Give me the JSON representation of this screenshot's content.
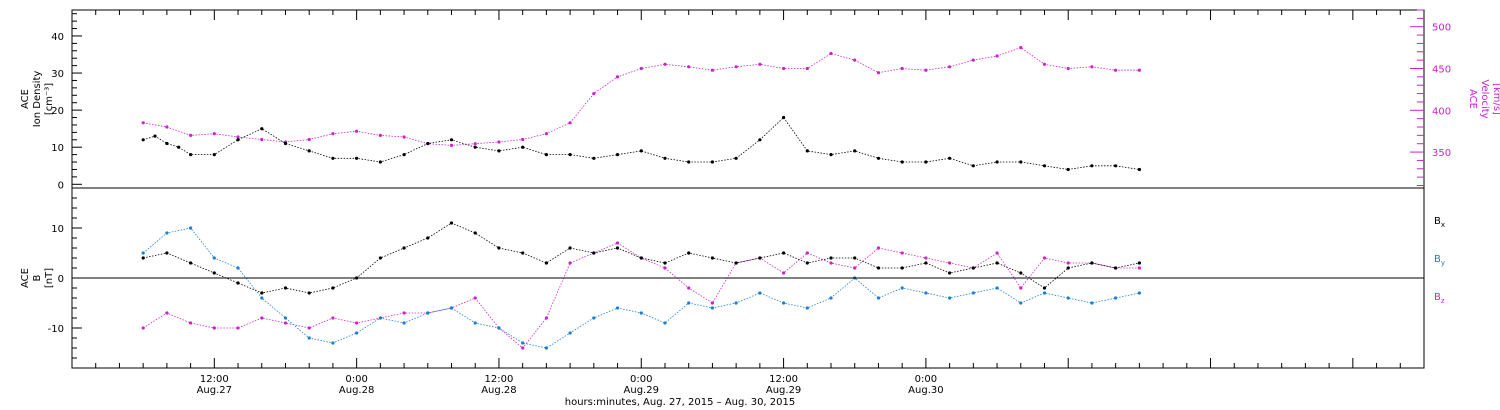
{
  "chart_data": [
    {
      "type": "scatter",
      "panel": "top",
      "ylabel_lines": [
        "ACE",
        "Ion Density",
        "[cm⁻³]"
      ],
      "y2label_lines": [
        "ACE",
        "Velocity",
        "[km/s]"
      ],
      "ylim": [
        -1,
        47
      ],
      "y2lim": [
        307,
        520
      ],
      "yticks": [
        0,
        10,
        20,
        30,
        40
      ],
      "y2ticks": [
        350,
        400,
        450,
        500
      ],
      "colors": {
        "left": "#000000",
        "right": "#cc22cc"
      },
      "series": [
        {
          "axis": "left",
          "color": "#000000",
          "x": [
            6,
            7,
            8,
            9,
            10,
            12,
            14,
            16,
            18,
            20,
            22,
            24,
            26,
            28,
            30,
            32,
            34,
            36,
            38,
            40,
            42,
            44,
            46,
            48,
            50,
            52,
            54,
            56,
            58,
            60,
            62,
            64,
            66,
            68,
            70,
            72,
            74,
            76,
            78,
            80,
            82,
            84,
            86,
            88,
            90
          ],
          "y": [
            12,
            13,
            11,
            10,
            8,
            8,
            12,
            15,
            11,
            9,
            7,
            7,
            6,
            8,
            11,
            12,
            10,
            9,
            10,
            8,
            8,
            7,
            8,
            9,
            7,
            6,
            6,
            7,
            12,
            18,
            9,
            8,
            9,
            7,
            6,
            6,
            7,
            5,
            6,
            6,
            5,
            4,
            5,
            5,
            4
          ]
        },
        {
          "axis": "right",
          "color": "#cc22cc",
          "x": [
            6,
            8,
            10,
            12,
            14,
            16,
            18,
            20,
            22,
            24,
            26,
            28,
            30,
            32,
            34,
            36,
            38,
            40,
            42,
            44,
            46,
            48,
            50,
            52,
            54,
            56,
            58,
            60,
            62,
            64,
            66,
            68,
            70,
            72,
            74,
            76,
            78,
            80,
            82,
            84,
            86,
            88,
            90
          ],
          "y": [
            385,
            380,
            370,
            372,
            368,
            365,
            362,
            365,
            372,
            375,
            370,
            368,
            360,
            358,
            360,
            362,
            365,
            372,
            385,
            420,
            440,
            450,
            455,
            452,
            448,
            452,
            455,
            450,
            450,
            468,
            460,
            445,
            450,
            448,
            452,
            460,
            465,
            475,
            455,
            450,
            452,
            448,
            448
          ]
        }
      ]
    },
    {
      "type": "scatter",
      "panel": "bottom",
      "ylabel_lines": [
        "ACE",
        "B",
        "[nT]"
      ],
      "ylim": [
        -18,
        18
      ],
      "yticks": [
        -10,
        0,
        10
      ],
      "zero_line": true,
      "legend": [
        {
          "label": "B",
          "sub": "x",
          "color": "#000000"
        },
        {
          "label": "B",
          "sub": "y",
          "color": "#1a7fd4"
        },
        {
          "label": "B",
          "sub": "z",
          "color": "#cc22cc"
        }
      ],
      "series": [
        {
          "name": "Bx",
          "color": "#000000",
          "x": [
            6,
            8,
            10,
            12,
            14,
            16,
            18,
            20,
            22,
            24,
            26,
            28,
            30,
            32,
            34,
            36,
            38,
            40,
            42,
            44,
            46,
            48,
            50,
            52,
            54,
            56,
            58,
            60,
            62,
            64,
            66,
            68,
            70,
            72,
            74,
            76,
            78,
            80,
            82,
            84,
            86,
            88,
            90
          ],
          "y": [
            4,
            5,
            3,
            1,
            -1,
            -3,
            -2,
            -3,
            -2,
            0,
            4,
            6,
            8,
            11,
            9,
            6,
            5,
            3,
            6,
            5,
            6,
            4,
            3,
            5,
            4,
            3,
            4,
            5,
            3,
            4,
            4,
            2,
            2,
            3,
            1,
            2,
            3,
            1,
            -2,
            2,
            3,
            2,
            3
          ]
        },
        {
          "name": "By",
          "color": "#1a7fd4",
          "x": [
            6,
            8,
            10,
            12,
            14,
            16,
            18,
            20,
            22,
            24,
            26,
            28,
            30,
            32,
            34,
            36,
            38,
            40,
            42,
            44,
            46,
            48,
            50,
            52,
            54,
            56,
            58,
            60,
            62,
            64,
            66,
            68,
            70,
            72,
            74,
            76,
            78,
            80,
            82,
            84,
            86,
            88,
            90
          ],
          "y": [
            5,
            9,
            10,
            4,
            2,
            -4,
            -8,
            -12,
            -13,
            -11,
            -8,
            -9,
            -7,
            -6,
            -9,
            -10,
            -13,
            -14,
            -11,
            -8,
            -6,
            -7,
            -9,
            -5,
            -6,
            -5,
            -3,
            -5,
            -6,
            -4,
            0,
            -4,
            -2,
            -3,
            -4,
            -3,
            -2,
            -5,
            -3,
            -4,
            -5,
            -4,
            -3
          ]
        },
        {
          "name": "Bz",
          "color": "#cc22cc",
          "x": [
            6,
            8,
            10,
            12,
            14,
            16,
            18,
            20,
            22,
            24,
            26,
            28,
            30,
            32,
            34,
            36,
            38,
            40,
            42,
            44,
            46,
            48,
            50,
            52,
            54,
            56,
            58,
            60,
            62,
            64,
            66,
            68,
            70,
            72,
            74,
            76,
            78,
            80,
            82,
            84,
            86,
            88,
            90
          ],
          "y": [
            -10,
            -7,
            -9,
            -10,
            -10,
            -8,
            -9,
            -10,
            -8,
            -9,
            -8,
            -7,
            -7,
            -6,
            -4,
            -10,
            -14,
            -8,
            3,
            5,
            7,
            4,
            2,
            -2,
            -5,
            3,
            4,
            1,
            5,
            3,
            2,
            6,
            5,
            4,
            3,
            2,
            5,
            -2,
            4,
            3,
            3,
            2,
            2
          ]
        }
      ]
    }
  ],
  "xaxis": {
    "xlim": [
      0,
      114
    ],
    "ticks": [
      {
        "x": 12,
        "time": "12:00",
        "date": "Aug.27"
      },
      {
        "x": 24,
        "time": "0:00",
        "date": "Aug.28"
      },
      {
        "x": 36,
        "time": "12:00",
        "date": "Aug.28"
      },
      {
        "x": 48,
        "time": "0:00",
        "date": "Aug.29"
      },
      {
        "x": 60,
        "time": "12:00",
        "date": "Aug.29"
      },
      {
        "x": 72,
        "time": "0:00",
        "date": "Aug.30"
      }
    ],
    "title": "hours:minutes, Aug. 27, 2015 – Aug. 30, 2015"
  }
}
